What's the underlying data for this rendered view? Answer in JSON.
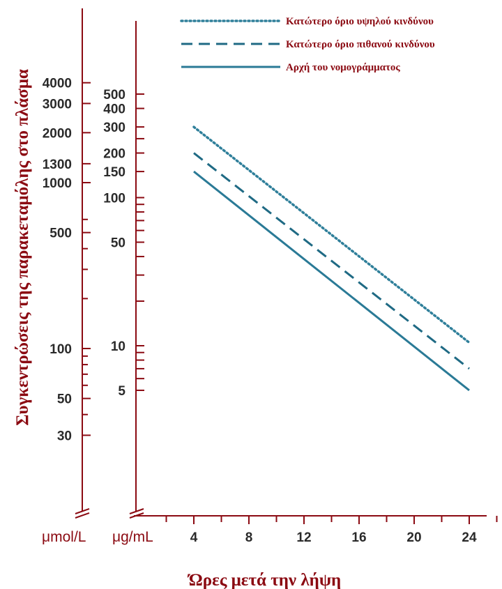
{
  "chart_data": {
    "type": "line",
    "xlabel": "Ώρες μετά την λήψη",
    "ylabel": "Συγκεντρώσεις της παρακεταμόλης στο πλάσμα",
    "x_ticks": [
      4,
      8,
      12,
      16,
      20,
      24
    ],
    "xlim": [
      4,
      24
    ],
    "y_scale": "log",
    "y_units": {
      "inner": "μg/mL",
      "outer": "μmol/L"
    },
    "y_ticks_ugml": [
      5,
      10,
      50,
      100,
      150,
      200,
      300,
      400,
      500
    ],
    "y_ticks_umol": [
      30,
      50,
      100,
      500,
      1000,
      1300,
      2000,
      3000,
      4000
    ],
    "legend_position": "top-right",
    "series": [
      {
        "name": "Κατώτερο όριο υψηλού κινδύνου",
        "style": "dotted",
        "color": "#2f7f9a",
        "x": [
          4,
          24
        ],
        "y": [
          300,
          10.5
        ]
      },
      {
        "name": "Κατώτερο όριο πιθανού κινδύνου",
        "style": "dashed",
        "color": "#1f6a84",
        "x": [
          4,
          24
        ],
        "y": [
          200,
          7
        ]
      },
      {
        "name": "Αρχή του νομογράμματος",
        "style": "solid",
        "color": "#2a7a96",
        "x": [
          4,
          24
        ],
        "y": [
          150,
          5
        ]
      }
    ]
  }
}
